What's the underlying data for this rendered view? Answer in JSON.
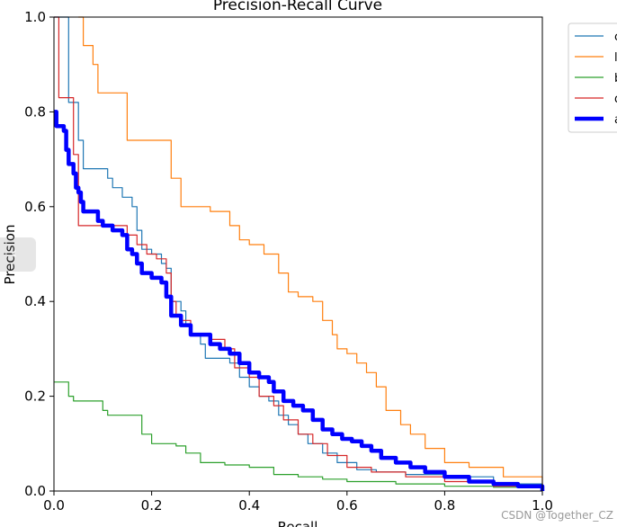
{
  "chart_data": {
    "type": "line",
    "title": "Precision-Recall Curve",
    "xlabel": "Recall",
    "ylabel": "Precision",
    "xlim": [
      0,
      1
    ],
    "ylim": [
      0,
      1
    ],
    "xticks": [
      "0.0",
      "0.2",
      "0.4",
      "0.6",
      "0.8",
      "1.0"
    ],
    "yticks": [
      "0.0",
      "0.2",
      "0.4",
      "0.6",
      "0.8",
      "1.0"
    ],
    "legend_position": "outside-upper-right",
    "series": [
      {
        "name": "c",
        "color": "#1f77b4",
        "width": 1.2,
        "points": [
          [
            0,
            1.0
          ],
          [
            0.02,
            1.0
          ],
          [
            0.03,
            0.82
          ],
          [
            0.04,
            0.82
          ],
          [
            0.05,
            0.74
          ],
          [
            0.06,
            0.68
          ],
          [
            0.1,
            0.68
          ],
          [
            0.11,
            0.66
          ],
          [
            0.12,
            0.64
          ],
          [
            0.14,
            0.62
          ],
          [
            0.16,
            0.6
          ],
          [
            0.17,
            0.55
          ],
          [
            0.18,
            0.51
          ],
          [
            0.2,
            0.5
          ],
          [
            0.22,
            0.48
          ],
          [
            0.23,
            0.47
          ],
          [
            0.24,
            0.4
          ],
          [
            0.26,
            0.38
          ],
          [
            0.27,
            0.35
          ],
          [
            0.28,
            0.33
          ],
          [
            0.3,
            0.31
          ],
          [
            0.31,
            0.28
          ],
          [
            0.33,
            0.28
          ],
          [
            0.36,
            0.27
          ],
          [
            0.38,
            0.24
          ],
          [
            0.4,
            0.22
          ],
          [
            0.42,
            0.2
          ],
          [
            0.44,
            0.19
          ],
          [
            0.46,
            0.16
          ],
          [
            0.48,
            0.14
          ],
          [
            0.5,
            0.12
          ],
          [
            0.52,
            0.1
          ],
          [
            0.55,
            0.08
          ],
          [
            0.58,
            0.06
          ],
          [
            0.62,
            0.045
          ],
          [
            0.66,
            0.04
          ],
          [
            0.72,
            0.035
          ],
          [
            0.8,
            0.03
          ],
          [
            0.9,
            0.015
          ],
          [
            1.0,
            0.0
          ]
        ]
      },
      {
        "name": "l",
        "color": "#ff7f0e",
        "width": 1.2,
        "points": [
          [
            0.05,
            1.0
          ],
          [
            0.06,
            0.94
          ],
          [
            0.08,
            0.9
          ],
          [
            0.09,
            0.84
          ],
          [
            0.13,
            0.84
          ],
          [
            0.15,
            0.74
          ],
          [
            0.22,
            0.74
          ],
          [
            0.24,
            0.66
          ],
          [
            0.26,
            0.6
          ],
          [
            0.32,
            0.59
          ],
          [
            0.36,
            0.56
          ],
          [
            0.38,
            0.53
          ],
          [
            0.4,
            0.52
          ],
          [
            0.43,
            0.5
          ],
          [
            0.46,
            0.46
          ],
          [
            0.48,
            0.42
          ],
          [
            0.5,
            0.41
          ],
          [
            0.53,
            0.4
          ],
          [
            0.55,
            0.36
          ],
          [
            0.57,
            0.33
          ],
          [
            0.58,
            0.3
          ],
          [
            0.6,
            0.29
          ],
          [
            0.62,
            0.27
          ],
          [
            0.64,
            0.25
          ],
          [
            0.66,
            0.22
          ],
          [
            0.68,
            0.17
          ],
          [
            0.71,
            0.14
          ],
          [
            0.73,
            0.12
          ],
          [
            0.76,
            0.09
          ],
          [
            0.8,
            0.06
          ],
          [
            0.85,
            0.05
          ],
          [
            0.92,
            0.03
          ],
          [
            1.0,
            0.005
          ]
        ]
      },
      {
        "name": "b",
        "color": "#2ca02c",
        "width": 1.2,
        "points": [
          [
            0,
            0.23
          ],
          [
            0.02,
            0.23
          ],
          [
            0.03,
            0.2
          ],
          [
            0.04,
            0.19
          ],
          [
            0.09,
            0.19
          ],
          [
            0.1,
            0.17
          ],
          [
            0.11,
            0.16
          ],
          [
            0.17,
            0.16
          ],
          [
            0.18,
            0.12
          ],
          [
            0.2,
            0.1
          ],
          [
            0.25,
            0.095
          ],
          [
            0.27,
            0.08
          ],
          [
            0.3,
            0.06
          ],
          [
            0.35,
            0.055
          ],
          [
            0.4,
            0.05
          ],
          [
            0.45,
            0.035
          ],
          [
            0.5,
            0.03
          ],
          [
            0.55,
            0.025
          ],
          [
            0.6,
            0.02
          ],
          [
            0.7,
            0.015
          ],
          [
            0.8,
            0.01
          ],
          [
            0.9,
            0.008
          ],
          [
            1.0,
            0.0
          ]
        ]
      },
      {
        "name": "d",
        "color": "#d62728",
        "width": 1.2,
        "points": [
          [
            0,
            1.0
          ],
          [
            0.01,
            0.83
          ],
          [
            0.03,
            0.83
          ],
          [
            0.04,
            0.71
          ],
          [
            0.05,
            0.56
          ],
          [
            0.12,
            0.56
          ],
          [
            0.15,
            0.54
          ],
          [
            0.17,
            0.52
          ],
          [
            0.19,
            0.5
          ],
          [
            0.21,
            0.49
          ],
          [
            0.23,
            0.46
          ],
          [
            0.24,
            0.4
          ],
          [
            0.25,
            0.37
          ],
          [
            0.26,
            0.36
          ],
          [
            0.28,
            0.33
          ],
          [
            0.3,
            0.33
          ],
          [
            0.32,
            0.32
          ],
          [
            0.35,
            0.3
          ],
          [
            0.37,
            0.26
          ],
          [
            0.4,
            0.24
          ],
          [
            0.42,
            0.2
          ],
          [
            0.45,
            0.18
          ],
          [
            0.47,
            0.15
          ],
          [
            0.5,
            0.12
          ],
          [
            0.53,
            0.1
          ],
          [
            0.56,
            0.075
          ],
          [
            0.6,
            0.05
          ],
          [
            0.65,
            0.04
          ],
          [
            0.72,
            0.03
          ],
          [
            0.8,
            0.02
          ],
          [
            0.9,
            0.01
          ],
          [
            1.0,
            0.0
          ]
        ]
      },
      {
        "name": "a",
        "color": "#0000ff",
        "width": 4.5,
        "points": [
          [
            0,
            0.8
          ],
          [
            0.005,
            0.77
          ],
          [
            0.02,
            0.76
          ],
          [
            0.025,
            0.72
          ],
          [
            0.03,
            0.69
          ],
          [
            0.04,
            0.67
          ],
          [
            0.045,
            0.64
          ],
          [
            0.05,
            0.63
          ],
          [
            0.055,
            0.61
          ],
          [
            0.06,
            0.59
          ],
          [
            0.08,
            0.59
          ],
          [
            0.09,
            0.57
          ],
          [
            0.1,
            0.56
          ],
          [
            0.12,
            0.55
          ],
          [
            0.14,
            0.54
          ],
          [
            0.15,
            0.51
          ],
          [
            0.16,
            0.5
          ],
          [
            0.17,
            0.48
          ],
          [
            0.18,
            0.46
          ],
          [
            0.2,
            0.45
          ],
          [
            0.22,
            0.44
          ],
          [
            0.23,
            0.41
          ],
          [
            0.24,
            0.37
          ],
          [
            0.26,
            0.35
          ],
          [
            0.28,
            0.33
          ],
          [
            0.3,
            0.33
          ],
          [
            0.32,
            0.31
          ],
          [
            0.34,
            0.3
          ],
          [
            0.36,
            0.29
          ],
          [
            0.38,
            0.27
          ],
          [
            0.4,
            0.25
          ],
          [
            0.42,
            0.24
          ],
          [
            0.44,
            0.23
          ],
          [
            0.45,
            0.21
          ],
          [
            0.47,
            0.19
          ],
          [
            0.49,
            0.18
          ],
          [
            0.51,
            0.17
          ],
          [
            0.53,
            0.15
          ],
          [
            0.55,
            0.13
          ],
          [
            0.57,
            0.12
          ],
          [
            0.59,
            0.11
          ],
          [
            0.61,
            0.105
          ],
          [
            0.63,
            0.095
          ],
          [
            0.65,
            0.085
          ],
          [
            0.67,
            0.07
          ],
          [
            0.7,
            0.06
          ],
          [
            0.73,
            0.05
          ],
          [
            0.76,
            0.04
          ],
          [
            0.8,
            0.03
          ],
          [
            0.85,
            0.02
          ],
          [
            0.9,
            0.015
          ],
          [
            0.95,
            0.01
          ],
          [
            1.0,
            0.0
          ]
        ]
      }
    ]
  },
  "watermark": "CSDN @Together_CZ"
}
